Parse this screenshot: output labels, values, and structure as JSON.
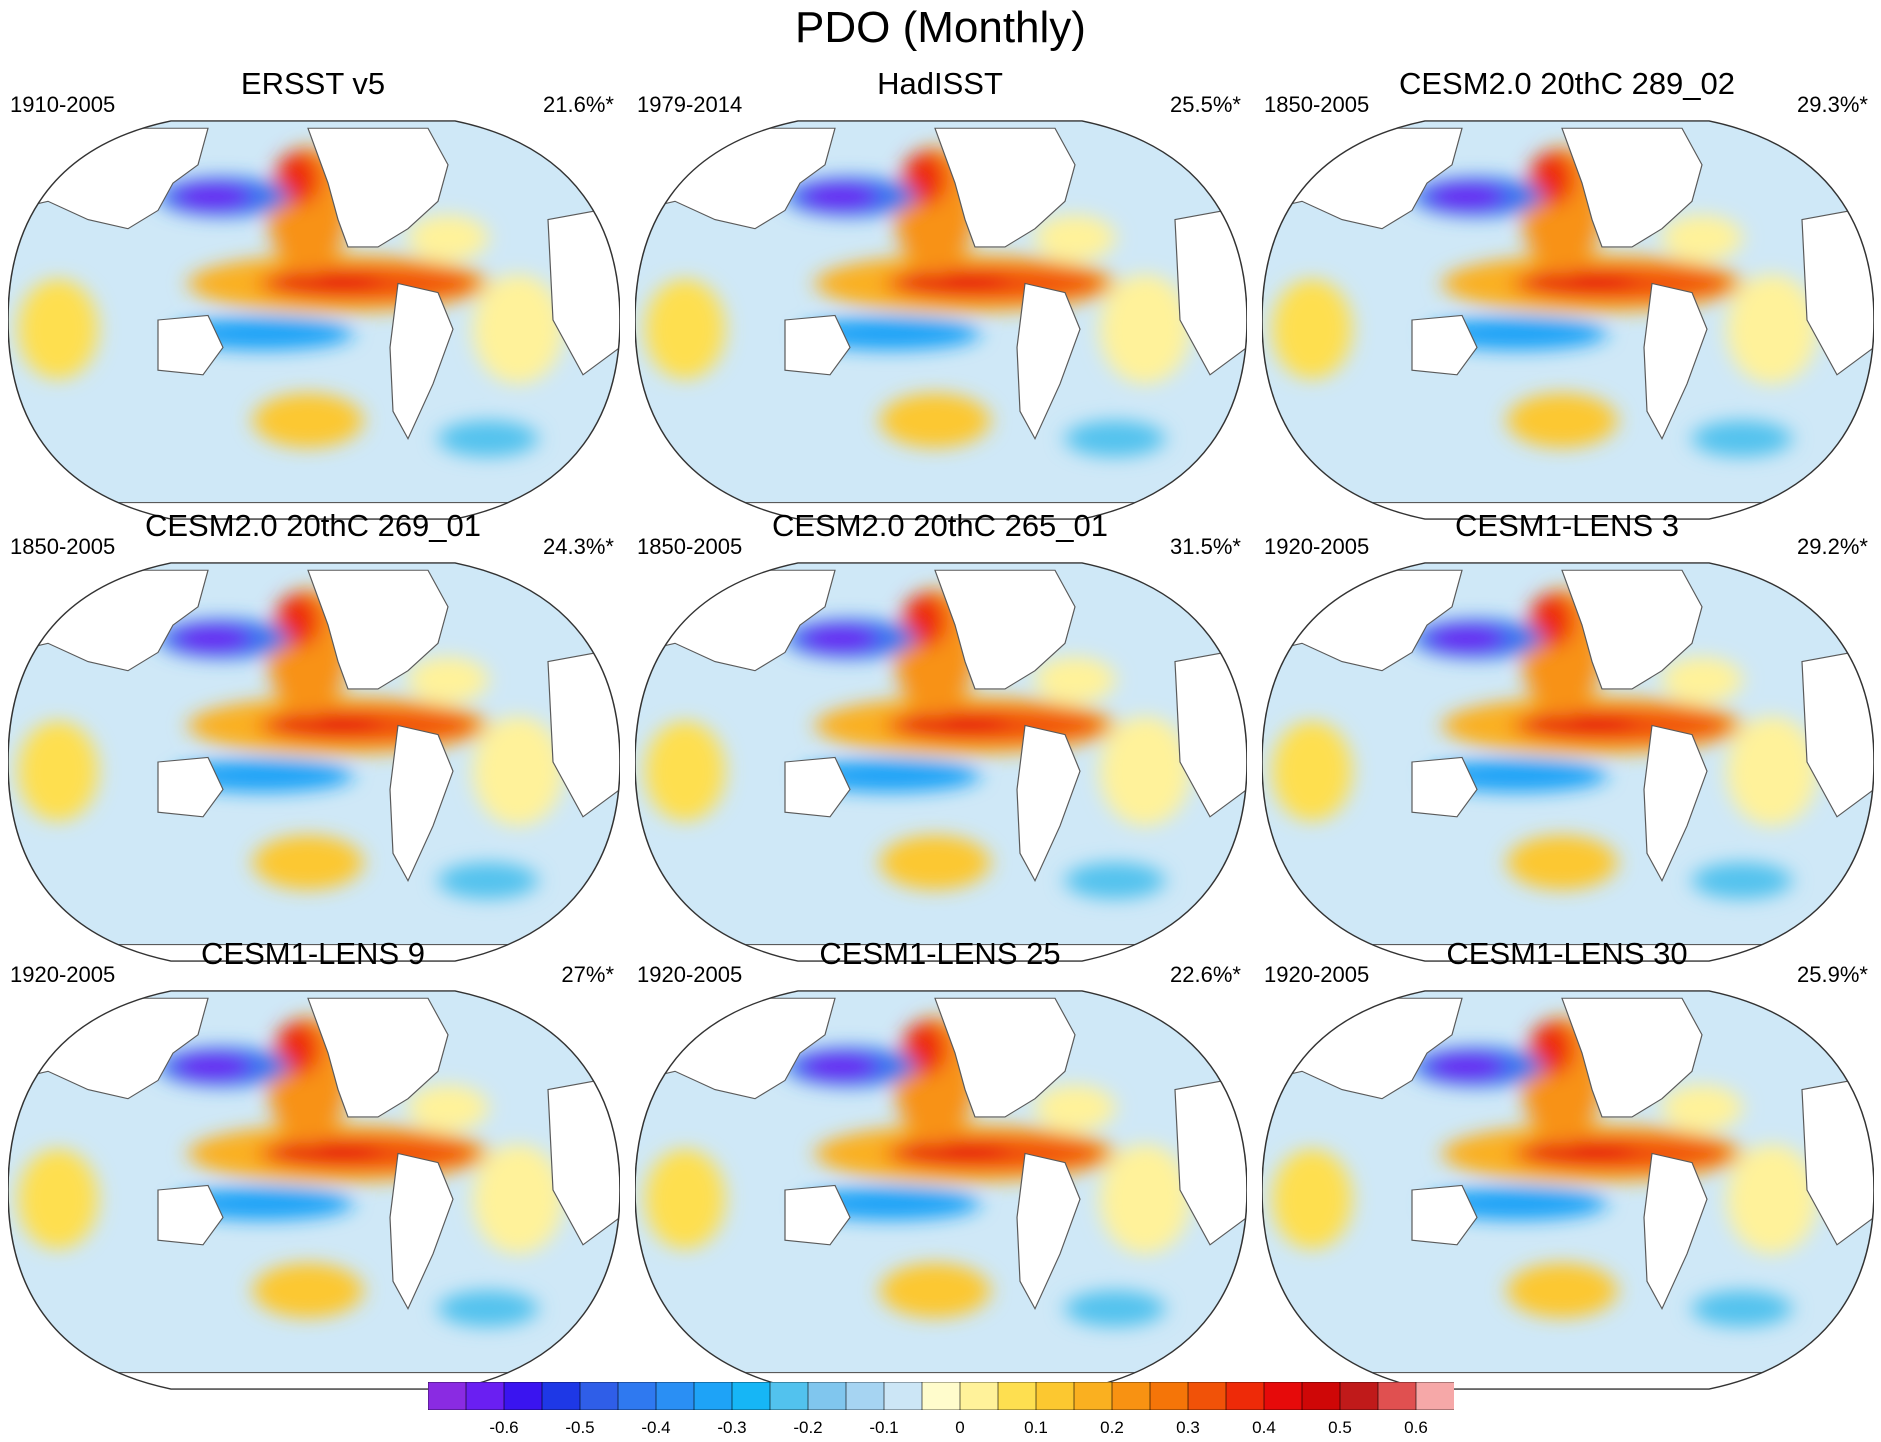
{
  "title": "PDO (Monthly)",
  "panels": [
    {
      "title": "ERSST v5",
      "period": "1910-2005",
      "percent": "21.6%*"
    },
    {
      "title": "HadISST",
      "period": "1979-2014",
      "percent": "25.5%*"
    },
    {
      "title": "CESM2.0 20thC 289_02",
      "period": "1850-2005",
      "percent": "29.3%*"
    },
    {
      "title": "CESM2.0 20thC 269_01",
      "period": "1850-2005",
      "percent": "24.3%*"
    },
    {
      "title": "CESM2.0 20thC 265_01",
      "period": "1850-2005",
      "percent": "31.5%*"
    },
    {
      "title": "CESM1-LENS 3",
      "period": "1920-2005",
      "percent": "29.2%*"
    },
    {
      "title": "CESM1-LENS 9",
      "period": "1920-2005",
      "percent": "27%*"
    },
    {
      "title": "CESM1-LENS 25",
      "period": "1920-2005",
      "percent": "22.6%*"
    },
    {
      "title": "CESM1-LENS 30",
      "period": "1920-2005",
      "percent": "25.9%*"
    }
  ],
  "colorbar": {
    "colors": [
      "#8a2be2",
      "#6a1ff2",
      "#3a14f0",
      "#1e38e6",
      "#2f5ee8",
      "#2f79f0",
      "#2a8ff4",
      "#1ea3f7",
      "#16b6f6",
      "#52c2ee",
      "#80c6ee",
      "#a6d4f2",
      "#cce6f6",
      "#fffccc",
      "#fff29a",
      "#fedf50",
      "#fcc830",
      "#fab020",
      "#f89212",
      "#f57508",
      "#f15208",
      "#ee2a08",
      "#e60a0a",
      "#cf0707",
      "#c01a1a",
      "#e05050",
      "#f6a8a8"
    ],
    "labels": [
      "-0.6",
      "-0.5",
      "-0.4",
      "-0.3",
      "-0.2",
      "-0.1",
      "0",
      "0.1",
      "0.2",
      "0.3",
      "0.4",
      "0.5",
      "0.6"
    ]
  },
  "map_colors": {
    "land": "#ffffff",
    "coastline": "#5a5a5a",
    "ocean_base": "#cfe8f7"
  }
}
